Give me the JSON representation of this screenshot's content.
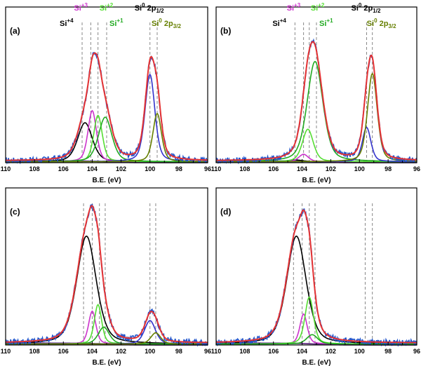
{
  "colors": {
    "si4": "#000000",
    "si3": "#cc33cc",
    "si2": "#55dd33",
    "si1": "#22aa22",
    "si0_half": "#000000",
    "si0_3half": "#667f00",
    "envelope": "#e53333",
    "raw": "#2255cc",
    "background": "#663388",
    "dashed": "#888888"
  },
  "annotations": {
    "si4": {
      "base": "Si",
      "sup": "+4"
    },
    "si3": {
      "base": "Si",
      "sup": "+3"
    },
    "si2": {
      "base": "Si",
      "sup": "+2"
    },
    "si1": {
      "base": "Si",
      "sup": "+1"
    },
    "si0_half": {
      "base": "Si",
      "sup": "0",
      "tail": " 2p",
      "sub": "1/2"
    },
    "si0_3half": {
      "base": "Si",
      "sup": "0",
      "tail": " 2p",
      "sub": "3/2"
    }
  },
  "chart_data": [
    {
      "panel": "(a)",
      "type": "line",
      "xlabel": "B.E. (eV)",
      "xlim": [
        110,
        96
      ],
      "x_reversed": true,
      "xticks": [
        "110",
        "108",
        "106",
        "104",
        "102",
        "100",
        "98",
        "96"
      ],
      "dashed_lines_eV": [
        104.7,
        104.1,
        103.6,
        103.0,
        100.0,
        99.5
      ],
      "components": [
        {
          "name": "Si+4",
          "center": 104.5,
          "amplitude": 0.42,
          "fwhm": 1.2
        },
        {
          "name": "Si+3",
          "center": 104.0,
          "amplitude": 0.55,
          "fwhm": 0.7
        },
        {
          "name": "Si+2",
          "center": 103.6,
          "amplitude": 0.5,
          "fwhm": 0.7
        },
        {
          "name": "Si+1",
          "center": 103.1,
          "amplitude": 0.48,
          "fwhm": 1.1
        },
        {
          "name": "Si0 2p1/2",
          "center": 100.0,
          "amplitude": 0.94,
          "fwhm": 0.8
        },
        {
          "name": "Si0 2p3/2",
          "center": 99.5,
          "amplitude": 0.52,
          "fwhm": 0.7
        }
      ],
      "background_level": 0.02,
      "envelope_peaks": [
        {
          "x": 103.8,
          "y": 0.91
        },
        {
          "x": 100.0,
          "y": 1.18
        }
      ]
    },
    {
      "panel": "(b)",
      "type": "line",
      "xlabel": "B.E. (eV)",
      "xlim": [
        110,
        96
      ],
      "x_reversed": true,
      "xticks": [
        "110",
        "108",
        "106",
        "104",
        "102",
        "100",
        "98",
        "96"
      ],
      "dashed_lines_eV": [
        104.5,
        103.9,
        103.5,
        103.0,
        99.5,
        99.1
      ],
      "components": [
        {
          "name": "Si+4",
          "center": 104.5,
          "amplitude": 0.02,
          "fwhm": 1.2
        },
        {
          "name": "Si+3",
          "center": 103.9,
          "amplitude": 0.08,
          "fwhm": 0.8
        },
        {
          "name": "Si+2",
          "center": 103.6,
          "amplitude": 0.35,
          "fwhm": 0.9
        },
        {
          "name": "Si+1",
          "center": 103.1,
          "amplitude": 1.08,
          "fwhm": 1.3
        },
        {
          "name": "Si0 2p1/2",
          "center": 99.5,
          "amplitude": 0.37,
          "fwhm": 0.7
        },
        {
          "name": "Si0 2p3/2",
          "center": 99.1,
          "amplitude": 0.95,
          "fwhm": 0.8
        }
      ],
      "background_level": 0.02,
      "envelope_peaks": [
        {
          "x": 103.3,
          "y": 1.2
        },
        {
          "x": 99.2,
          "y": 1.12
        }
      ]
    },
    {
      "panel": "(c)",
      "type": "line",
      "xlabel": "B.E. (eV)",
      "xlim": [
        110,
        96
      ],
      "x_reversed": true,
      "xticks": [
        "110",
        "108",
        "106",
        "104",
        "102",
        "100",
        "98",
        "96"
      ],
      "dashed_lines_eV": [
        104.6,
        104.0,
        103.5,
        103.1,
        100.0,
        99.6
      ],
      "components": [
        {
          "name": "Si+4",
          "center": 104.4,
          "amplitude": 1.15,
          "fwhm": 1.6
        },
        {
          "name": "Si+3",
          "center": 104.0,
          "amplitude": 0.35,
          "fwhm": 0.6
        },
        {
          "name": "Si+2",
          "center": 103.6,
          "amplitude": 0.42,
          "fwhm": 0.6
        },
        {
          "name": "Si+1",
          "center": 103.2,
          "amplitude": 0.18,
          "fwhm": 0.9
        },
        {
          "name": "Si0 2p1/2",
          "center": 100.0,
          "amplitude": 0.25,
          "fwhm": 0.9
        },
        {
          "name": "Si0 2p3/2",
          "center": 99.6,
          "amplitude": 0.12,
          "fwhm": 0.8
        }
      ],
      "background_level": 0.02,
      "envelope_peaks": [
        {
          "x": 104.2,
          "y": 1.38
        },
        {
          "x": 100.0,
          "y": 0.28
        }
      ]
    },
    {
      "panel": "(d)",
      "type": "line",
      "xlabel": "B.E. (eV)",
      "xlim": [
        110,
        96
      ],
      "x_reversed": true,
      "xticks": [
        "110",
        "108",
        "106",
        "104",
        "102",
        "100",
        "98",
        "96"
      ],
      "dashed_lines_eV": [
        104.6,
        104.0,
        103.5,
        103.1,
        99.6,
        99.1
      ],
      "components": [
        {
          "name": "Si+4",
          "center": 104.4,
          "amplitude": 1.15,
          "fwhm": 1.6
        },
        {
          "name": "Si+3",
          "center": 103.9,
          "amplitude": 0.32,
          "fwhm": 0.6
        },
        {
          "name": "Si+2",
          "center": 103.5,
          "amplitude": 0.5,
          "fwhm": 0.7
        },
        {
          "name": "Si+1",
          "center": 103.3,
          "amplitude": 0.1,
          "fwhm": 0.9
        },
        {
          "name": "Si0 2p1/2",
          "center": 99.6,
          "amplitude": 0.0,
          "fwhm": 0.8
        },
        {
          "name": "Si0 2p3/2",
          "center": 99.1,
          "amplitude": 0.0,
          "fwhm": 0.8
        }
      ],
      "background_level": 0.02,
      "envelope_peaks": [
        {
          "x": 104.2,
          "y": 1.38
        }
      ]
    }
  ]
}
